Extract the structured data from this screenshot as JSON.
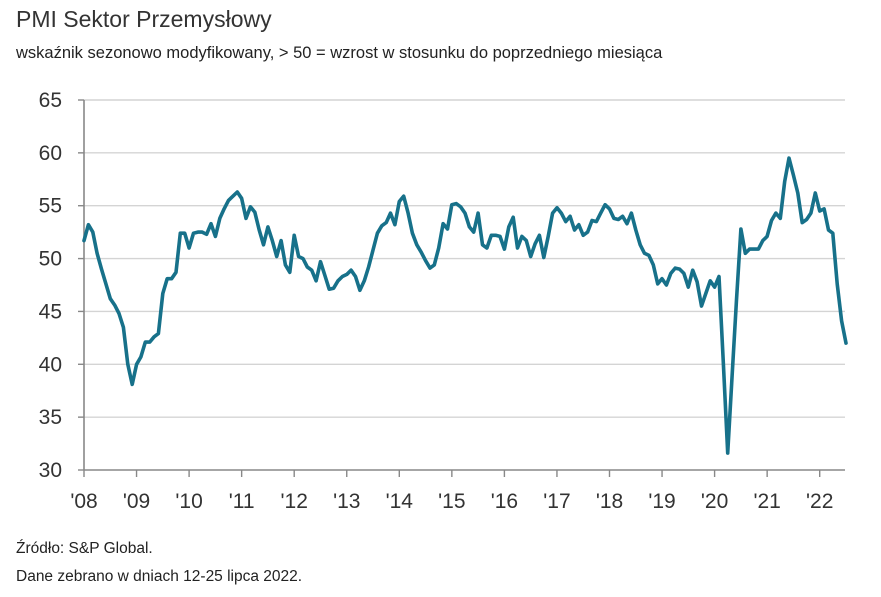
{
  "chart_data": {
    "type": "line",
    "title": "PMI Sektor Przemysłowy",
    "subtitle": "wskaźnik sezonowo modyfikowany, > 50 = wzrost w stosunku do poprzedniego miesiąca",
    "xlabel": "",
    "ylabel": "",
    "x_start": "2008-01",
    "x_end": "2022-07",
    "x_frequency": "monthly",
    "x_tick_labels": [
      "'08",
      "'09",
      "'10",
      "'11",
      "'12",
      "'13",
      "'14",
      "'15",
      "'16",
      "'17",
      "'18",
      "'19",
      "'20",
      "'21",
      "'22"
    ],
    "y_tick_labels": [
      "65",
      "60",
      "55",
      "50",
      "45",
      "40",
      "35",
      "30"
    ],
    "ylim": [
      30,
      65
    ],
    "grid": "horizontal",
    "line_color": "#17718a",
    "series": [
      {
        "values": [
          51.7,
          53.2,
          52.5,
          50.5,
          49.0,
          47.6,
          46.2,
          45.6,
          44.8,
          43.5,
          40.0,
          38.1,
          40.0,
          40.7,
          42.1,
          42.1,
          42.6,
          42.9,
          46.7,
          48.1,
          48.1,
          48.7,
          52.4,
          52.4,
          51.0,
          52.4,
          52.5,
          52.5,
          52.3,
          53.3,
          52.1,
          53.8,
          54.7,
          55.5,
          55.9,
          56.3,
          55.7,
          53.8,
          54.9,
          54.4,
          52.7,
          51.3,
          53.0,
          51.7,
          50.2,
          51.7,
          49.4,
          48.7,
          52.2,
          50.2,
          50.0,
          49.2,
          48.9,
          47.9,
          49.7,
          48.4,
          47.1,
          47.2,
          47.9,
          48.3,
          48.5,
          48.9,
          48.3,
          47.0,
          47.9,
          49.2,
          50.8,
          52.4,
          53.1,
          53.4,
          54.3,
          53.2,
          55.4,
          55.9,
          54.3,
          52.4,
          51.3,
          50.6,
          49.8,
          49.1,
          49.4,
          51.0,
          53.3,
          52.8,
          55.1,
          55.2,
          54.9,
          54.3,
          53.0,
          52.5,
          54.3,
          51.3,
          51.0,
          52.2,
          52.2,
          52.1,
          50.9,
          53.0,
          53.9,
          51.0,
          52.1,
          51.7,
          50.2,
          51.4,
          52.2,
          50.1,
          52.1,
          54.3,
          54.8,
          54.3,
          53.5,
          54.0,
          52.7,
          53.2,
          52.2,
          52.5,
          53.6,
          53.5,
          54.3,
          55.1,
          54.7,
          53.8,
          53.7,
          54.0,
          53.3,
          54.3,
          52.7,
          51.3,
          50.5,
          50.3,
          49.4,
          47.6,
          48.1,
          47.5,
          48.6,
          49.1,
          49.0,
          48.6,
          47.3,
          48.9,
          47.8,
          45.5,
          46.7,
          47.9,
          47.3,
          48.3,
          40.0,
          31.6,
          38.9,
          46.1,
          52.8,
          50.5,
          50.9,
          50.9,
          50.9,
          51.7,
          52.1,
          53.6,
          54.3,
          53.8,
          57.3,
          59.5,
          57.9,
          56.2,
          53.4,
          53.7,
          54.3,
          56.2,
          54.5,
          54.7,
          52.7,
          52.4,
          47.6,
          44.1,
          42.0
        ]
      }
    ]
  },
  "footer": {
    "source": "Źródło: S&P Global.",
    "note": "Dane zebrano w dniach 12-25 lipca 2022."
  }
}
